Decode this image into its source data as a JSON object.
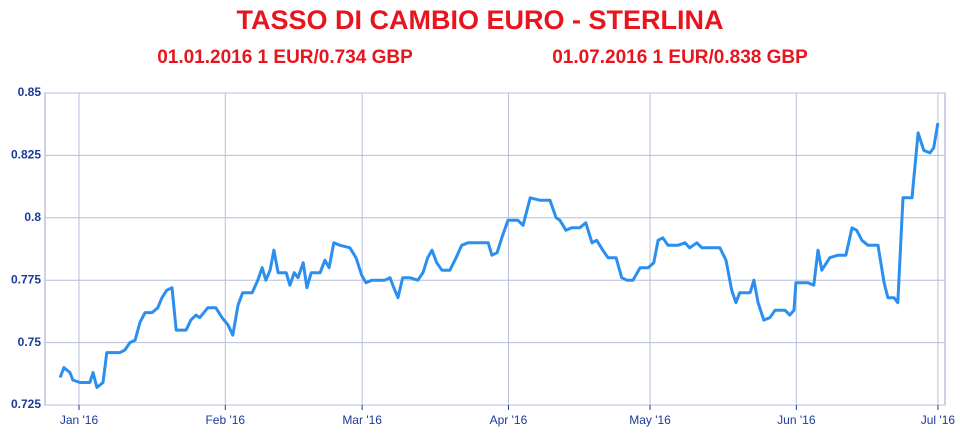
{
  "chart_data": {
    "type": "line",
    "title": "TASSO DI CAMBIO EURO - STERLINA",
    "subtitles": [
      "01.01.2016 1 EUR/0.734 GBP",
      "01.07.2016 1 EUR/0.838 GBP"
    ],
    "x": [
      -4,
      -3.2,
      -1.9,
      -1.3,
      0.2,
      2.3,
      3,
      3.8,
      5.1,
      5.9,
      8.7,
      9.7,
      10.8,
      11.9,
      12.9,
      14,
      15.5,
      16.7,
      17.6,
      18.6,
      19.7,
      20.6,
      22.7,
      23.7,
      24.8,
      25.6,
      27.3,
      29,
      30.3,
      31.6,
      32.6,
      33.7,
      34.7,
      36.7,
      37.9,
      38.8,
      39.6,
      40.5,
      41.3,
      42.2,
      43.9,
      44.7,
      45.6,
      46.4,
      47.5,
      48.3,
      49.2,
      51.1,
      52.1,
      53,
      54,
      55.3,
      57.4,
      58.7,
      59.9,
      60.8,
      62.1,
      64.8,
      65.9,
      66.7,
      67.6,
      68.6,
      70.1,
      71.8,
      72.9,
      73.9,
      74.8,
      75.8,
      76.9,
      78.6,
      79.9,
      81.1,
      82.4,
      84.5,
      86.7,
      87.5,
      88.6,
      89.6,
      90.9,
      93,
      94.1,
      95.6,
      97.7,
      99.8,
      101.1,
      101.9,
      103.2,
      104.4,
      106.1,
      107.4,
      108.7,
      109.7,
      111,
      112.1,
      113.8,
      115,
      116.1,
      117.4,
      118.9,
      120.6,
      121.8,
      122.7,
      123.7,
      124.8,
      126.9,
      128.4,
      129.4,
      130.9,
      132,
      134.1,
      135.8,
      137.1,
      138.3,
      139.2,
      140,
      142.2,
      143,
      143.9,
      145.1,
      146.4,
      147.5,
      149.6,
      150.6,
      151.5,
      151.9,
      154.4,
      155.7,
      156.6,
      157.4,
      159.1,
      160.8,
      162.5,
      163.8,
      164.8,
      165.9,
      167.2,
      169.3,
      170.6,
      171.4,
      172.7,
      173.5,
      174.6,
      176.5,
      177.8,
      179,
      180.3,
      181.1,
      182
    ],
    "series": [
      {
        "color": "#2b8ff0",
        "values": [
          0.736,
          0.74,
          0.738,
          0.735,
          0.734,
          0.734,
          0.738,
          0.732,
          0.734,
          0.746,
          0.746,
          0.747,
          0.75,
          0.751,
          0.758,
          0.762,
          0.762,
          0.764,
          0.768,
          0.771,
          0.772,
          0.755,
          0.755,
          0.759,
          0.761,
          0.76,
          0.764,
          0.764,
          0.76,
          0.757,
          0.753,
          0.765,
          0.77,
          0.77,
          0.775,
          0.78,
          0.775,
          0.779,
          0.787,
          0.778,
          0.778,
          0.773,
          0.778,
          0.776,
          0.782,
          0.772,
          0.778,
          0.778,
          0.783,
          0.78,
          0.79,
          0.789,
          0.788,
          0.784,
          0.777,
          0.774,
          0.775,
          0.775,
          0.776,
          0.772,
          0.768,
          0.776,
          0.776,
          0.775,
          0.778,
          0.784,
          0.787,
          0.782,
          0.779,
          0.779,
          0.784,
          0.789,
          0.79,
          0.79,
          0.79,
          0.785,
          0.786,
          0.792,
          0.799,
          0.799,
          0.797,
          0.808,
          0.807,
          0.807,
          0.8,
          0.799,
          0.795,
          0.796,
          0.796,
          0.798,
          0.79,
          0.791,
          0.787,
          0.784,
          0.784,
          0.776,
          0.775,
          0.775,
          0.78,
          0.78,
          0.782,
          0.791,
          0.792,
          0.789,
          0.789,
          0.79,
          0.788,
          0.79,
          0.788,
          0.788,
          0.788,
          0.783,
          0.771,
          0.766,
          0.77,
          0.77,
          0.775,
          0.766,
          0.759,
          0.76,
          0.763,
          0.763,
          0.761,
          0.763,
          0.774,
          0.774,
          0.773,
          0.787,
          0.779,
          0.784,
          0.785,
          0.785,
          0.796,
          0.795,
          0.791,
          0.789,
          0.789,
          0.774,
          0.768,
          0.768,
          0.766,
          0.808,
          0.808,
          0.834,
          0.827,
          0.826,
          0.828,
          0.838
        ]
      }
    ],
    "xlim": [
      -7.2,
      183.5
    ],
    "xticks": [
      {
        "value": 0,
        "label": "Jan '16"
      },
      {
        "value": 31,
        "label": "Feb '16"
      },
      {
        "value": 60,
        "label": "Mar '16"
      },
      {
        "value": 91,
        "label": "Apr '16"
      },
      {
        "value": 121,
        "label": "May '16"
      },
      {
        "value": 152,
        "label": "Jun '16"
      },
      {
        "value": 182,
        "label": "Jul '16"
      }
    ],
    "ylim": [
      0.725,
      0.85
    ],
    "yticks": [
      0.725,
      0.75,
      0.775,
      0.8,
      0.825,
      0.85
    ],
    "grid": true
  }
}
